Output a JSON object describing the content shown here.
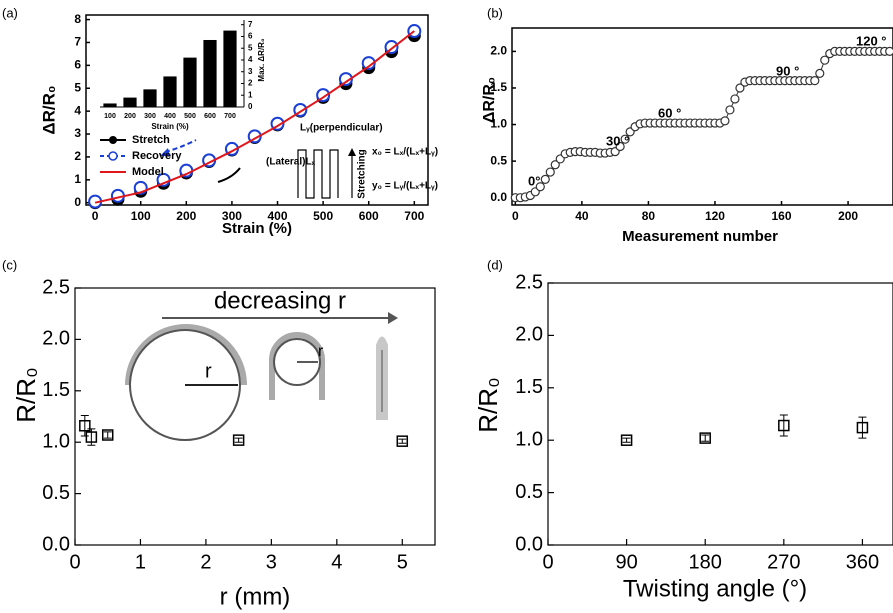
{
  "chart_data": [
    {
      "type": "scatter",
      "panel_label": "(a)",
      "x_label": "Strain (%)",
      "y_label": "ΔR/R₀",
      "xlim": [
        -20,
        730
      ],
      "xticks": [
        0,
        100,
        200,
        300,
        400,
        500,
        600,
        700
      ],
      "ylim": [
        -0.1,
        8.2
      ],
      "yticks": [
        0,
        1,
        2,
        3,
        4,
        5,
        6,
        7,
        8
      ],
      "legend": "left",
      "series": [
        {
          "name": "Stretch",
          "color": "#000000",
          "marker": "filled-circle",
          "line": false,
          "x": [
            0,
            50,
            100,
            150,
            200,
            250,
            300,
            350,
            400,
            450,
            500,
            550,
            600,
            650,
            700
          ],
          "values": [
            0,
            0.15,
            0.5,
            0.85,
            1.3,
            1.8,
            2.3,
            2.85,
            3.4,
            4.0,
            4.6,
            5.2,
            5.9,
            6.6,
            7.3
          ]
        },
        {
          "name": "Recovery",
          "color": "#1a3fd6",
          "marker": "open-circle",
          "line": false,
          "dashed": true,
          "x": [
            0,
            50,
            100,
            150,
            200,
            250,
            300,
            350,
            400,
            450,
            500,
            550,
            600,
            650,
            700
          ],
          "values": [
            0.05,
            0.3,
            0.65,
            1.0,
            1.4,
            1.85,
            2.35,
            2.9,
            3.45,
            4.05,
            4.7,
            5.4,
            6.1,
            6.8,
            7.5
          ]
        },
        {
          "name": "Model",
          "color": "#e0161b",
          "marker": "none",
          "line": true,
          "x": [
            0,
            100,
            200,
            300,
            400,
            500,
            600,
            700
          ],
          "values": [
            0,
            0.45,
            1.25,
            2.25,
            3.35,
            4.6,
            5.95,
            7.5
          ]
        }
      ],
      "inset": {
        "type": "bar",
        "x_label": "Strain (%)",
        "y_label": "Max. ΔR/R₀",
        "color": "#000000",
        "categories": [
          "100",
          "200",
          "300",
          "400",
          "500",
          "600",
          "700"
        ],
        "values": [
          0.3,
          0.8,
          1.5,
          2.6,
          4.2,
          5.7,
          6.5
        ],
        "ylim": [
          0,
          7.4
        ],
        "yticks": [
          0,
          1,
          2,
          3,
          4,
          5,
          6,
          7
        ]
      },
      "annotations": [
        "Lᵧ(perpendicular)",
        "(Lateral)Lₓ",
        "Stretching",
        "x₀ = Lₓ/(Lₓ+Lᵧ)",
        "y₀ = Lᵧ/(Lₓ+Lᵧ)"
      ]
    },
    {
      "type": "scatter",
      "panel_label": "(b)",
      "x_label": "Measurement number",
      "y_label": "ΔR/R₀",
      "xlim": [
        -2,
        227
      ],
      "xticks": [
        0,
        40,
        80,
        120,
        160,
        200
      ],
      "ylim": [
        -0.1,
        2.32
      ],
      "yticks": [
        {
          "value": 0,
          "label": "0.0"
        },
        0.5,
        {
          "value": 1,
          "label": "1.0"
        },
        1.5,
        {
          "value": 2,
          "label": "2.0"
        }
      ],
      "series": [
        {
          "name": "ΔR/R₀",
          "color": "#333333",
          "marker": "open-circle",
          "line": true,
          "x": [
            0,
            3,
            6,
            9,
            12,
            15,
            18,
            21,
            24,
            27,
            30,
            33,
            36,
            39,
            42,
            45,
            48,
            51,
            54,
            57,
            60,
            63,
            66,
            69,
            72,
            75,
            78,
            81,
            84,
            87,
            90,
            93,
            96,
            99,
            102,
            105,
            108,
            111,
            114,
            117,
            120,
            123,
            126,
            129,
            132,
            135,
            138,
            141,
            144,
            147,
            150,
            153,
            156,
            159,
            162,
            165,
            168,
            171,
            174,
            177,
            180,
            183,
            186,
            189,
            192,
            195,
            198,
            201,
            204,
            207,
            210,
            213,
            216,
            219,
            222,
            225
          ],
          "values": [
            0,
            0,
            0.01,
            0.03,
            0.08,
            0.15,
            0.25,
            0.35,
            0.45,
            0.53,
            0.6,
            0.62,
            0.63,
            0.63,
            0.62,
            0.62,
            0.62,
            0.61,
            0.61,
            0.62,
            0.63,
            0.7,
            0.8,
            0.9,
            0.97,
            1.01,
            1.02,
            1.02,
            1.02,
            1.02,
            1.02,
            1.02,
            1.02,
            1.02,
            1.02,
            1.02,
            1.02,
            1.02,
            1.02,
            1.02,
            1.02,
            1.02,
            1.05,
            1.2,
            1.35,
            1.5,
            1.58,
            1.6,
            1.6,
            1.6,
            1.6,
            1.6,
            1.6,
            1.6,
            1.6,
            1.6,
            1.6,
            1.6,
            1.6,
            1.6,
            1.6,
            1.7,
            1.88,
            1.97,
            2.0,
            2.0,
            2.0,
            2.0,
            2.0,
            2.0,
            2.0,
            2.0,
            2.0,
            2.0,
            2.0,
            2.0
          ]
        }
      ],
      "annotations": [
        "0°",
        "30 °",
        "60 °",
        "90 °",
        "120 °"
      ]
    },
    {
      "type": "scatter",
      "panel_label": "(c)",
      "x_label": "r (mm)",
      "y_label": "R/R₀",
      "xlim": [
        0,
        5.5
      ],
      "xticks": [
        0,
        1,
        2,
        3,
        4,
        5
      ],
      "ylim": [
        0,
        2.5
      ],
      "yticks": [
        {
          "value": 0,
          "label": "0.0"
        },
        0.5,
        {
          "value": 1,
          "label": "1.0"
        },
        1.5,
        {
          "value": 2,
          "label": "2.0"
        },
        2.5
      ],
      "series": [
        {
          "name": "R/R₀",
          "color": "#000000",
          "marker": "open-square",
          "line": false,
          "x": [
            0.15,
            0.25,
            0.5,
            2.5,
            5
          ],
          "values": [
            1.16,
            1.05,
            1.07,
            1.02,
            1.01
          ],
          "errors": [
            0.1,
            0.08,
            0.03,
            0.02,
            0.02
          ]
        }
      ],
      "annotations": [
        "decreasing r",
        "r",
        "r"
      ]
    },
    {
      "type": "scatter",
      "panel_label": "(d)",
      "x_label": "Twisting angle (°)",
      "y_label": "R/R₀",
      "xlim": [
        0,
        395
      ],
      "xticks": [
        0,
        90,
        180,
        270,
        360
      ],
      "ylim": [
        0,
        2.5
      ],
      "yticks": [
        {
          "value": 0,
          "label": "0.0"
        },
        0.5,
        {
          "value": 1,
          "label": "1.0"
        },
        1.5,
        {
          "value": 2,
          "label": "2.0"
        },
        2.5
      ],
      "series": [
        {
          "name": "R/R₀",
          "color": "#000000",
          "marker": "open-square",
          "line": false,
          "x": [
            90,
            180,
            270,
            360
          ],
          "values": [
            1.0,
            1.02,
            1.14,
            1.12
          ],
          "errors": [
            0.02,
            0.03,
            0.1,
            0.1
          ]
        }
      ]
    }
  ]
}
